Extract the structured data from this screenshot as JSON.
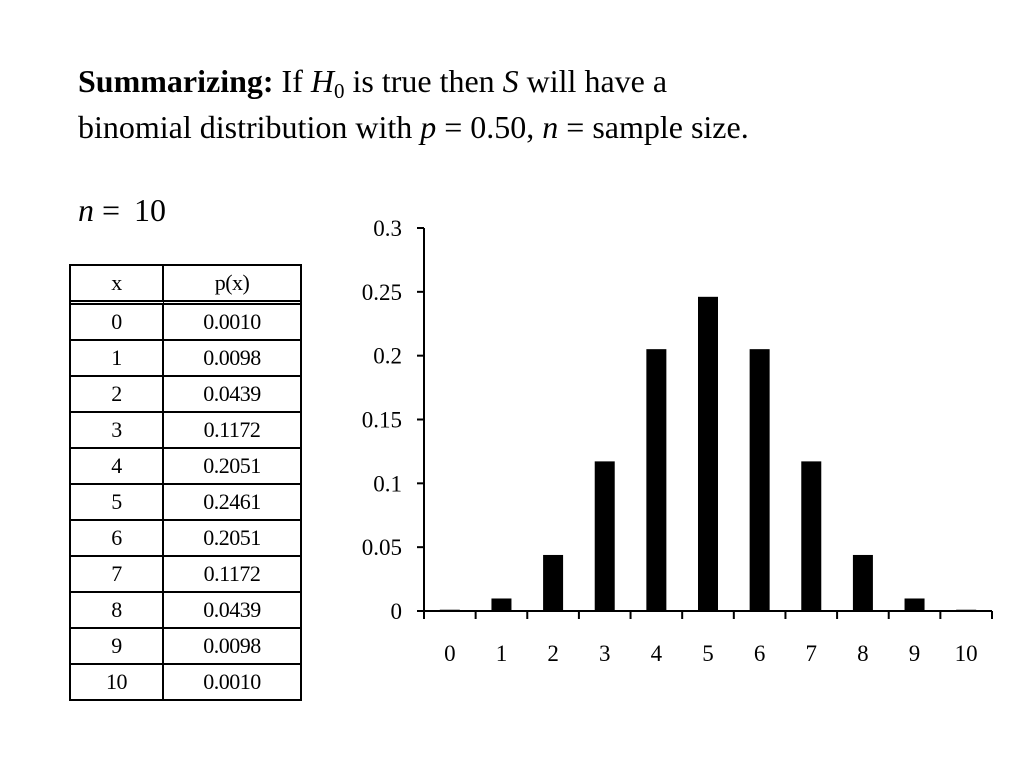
{
  "heading": {
    "bold": "Summarizing:",
    "t1": " If ",
    "h": "H",
    "h_sub": "0",
    "t2": " is true then ",
    "s": "S",
    "t3": " will have a",
    "t4": "binomial distribution with ",
    "p": "p",
    "t5": " = 0.50, ",
    "n": "n",
    "t6": " = sample size."
  },
  "n_line": {
    "n": "n",
    "eq": "=",
    "value": "10"
  },
  "table": {
    "headers": [
      "x",
      "p(x)"
    ],
    "rows": [
      [
        "0",
        "0.0010"
      ],
      [
        "1",
        "0.0098"
      ],
      [
        "2",
        "0.0439"
      ],
      [
        "3",
        "0.1172"
      ],
      [
        "4",
        "0.2051"
      ],
      [
        "5",
        "0.2461"
      ],
      [
        "6",
        "0.2051"
      ],
      [
        "7",
        "0.1172"
      ],
      [
        "8",
        "0.0439"
      ],
      [
        "9",
        "0.0098"
      ],
      [
        "10",
        "0.0010"
      ]
    ]
  },
  "chart_data": {
    "type": "bar",
    "title": "",
    "xlabel": "",
    "ylabel": "",
    "categories": [
      "0",
      "1",
      "2",
      "3",
      "4",
      "5",
      "6",
      "7",
      "8",
      "9",
      "10"
    ],
    "values": [
      0.001,
      0.0098,
      0.0439,
      0.1172,
      0.2051,
      0.2461,
      0.2051,
      0.1172,
      0.0439,
      0.0098,
      0.001
    ],
    "ylim": [
      0,
      0.3
    ],
    "yticks": [
      "0",
      "0.05",
      "0.1",
      "0.15",
      "0.2",
      "0.25",
      "0.3"
    ],
    "grid": false,
    "bar_color": "#000000"
  }
}
